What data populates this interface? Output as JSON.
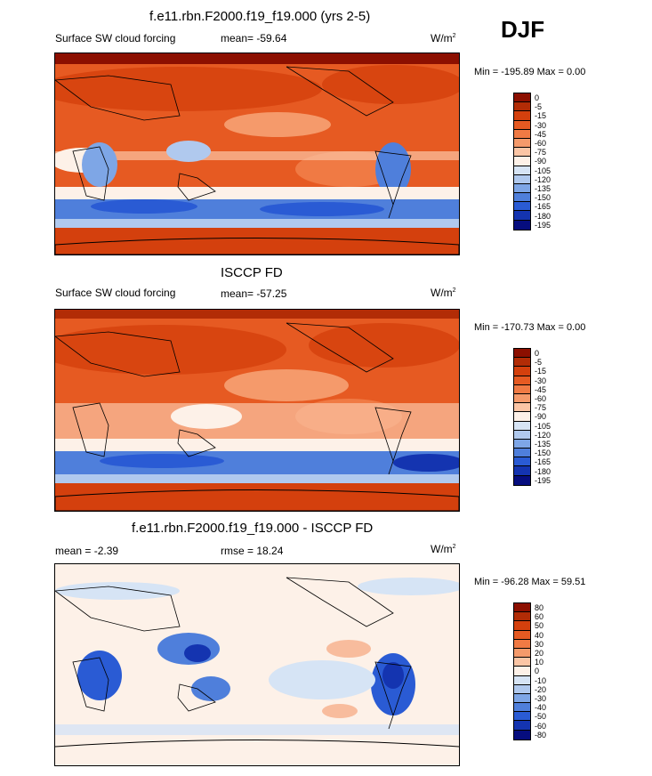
{
  "season": "DJF",
  "units_base": "W/m",
  "units_exp": "2",
  "panels": [
    {
      "title": "f.e11.rbn.F2000.f19_f19.000 (yrs 2-5)",
      "left_label": "Surface SW cloud forcing",
      "center_label": "mean= -59.64",
      "stats": "Min = -195.89 Max =   0.00"
    },
    {
      "title": "ISCCP FD",
      "left_label": "Surface SW cloud forcing",
      "center_label": "mean= -57.25",
      "stats": "Min = -170.73 Max =   0.00"
    },
    {
      "title": "f.e11.rbn.F2000.f19_f19.000 - ISCCP FD",
      "left_label": "mean =  -2.39",
      "center_label": "rmse =  18.24",
      "stats": "Min = -96.28 Max =  59.51"
    }
  ],
  "chart_data": [
    {
      "type": "heatmap",
      "title": "f.e11.rbn.F2000.f19_f19.000 (yrs 2-5)",
      "variable": "Surface SW cloud forcing",
      "mean": -59.64,
      "min": -195.89,
      "max": 0.0,
      "colorbar_labels": [
        "0",
        "-5",
        "-15",
        "-30",
        "-45",
        "-60",
        "-75",
        "-90",
        "-105",
        "-120",
        "-135",
        "-150",
        "-165",
        "-180",
        "-195"
      ]
    },
    {
      "type": "heatmap",
      "title": "ISCCP FD",
      "variable": "Surface SW cloud forcing",
      "mean": -57.25,
      "min": -170.73,
      "max": 0.0,
      "colorbar_labels": [
        "0",
        "-5",
        "-15",
        "-30",
        "-45",
        "-60",
        "-75",
        "-90",
        "-105",
        "-120",
        "-135",
        "-150",
        "-165",
        "-180",
        "-195"
      ]
    },
    {
      "type": "heatmap",
      "title": "f.e11.rbn.F2000.f19_f19.000 - ISCCP FD",
      "mean": -2.39,
      "rmse": 18.24,
      "min": -96.28,
      "max": 59.51,
      "colorbar_labels": [
        "80",
        "60",
        "50",
        "40",
        "30",
        "20",
        "10",
        "0",
        "-10",
        "-20",
        "-30",
        "-40",
        "-50",
        "-60",
        "-80"
      ]
    }
  ],
  "colors": {
    "abs_scale": [
      "#8c0f00",
      "#b22c06",
      "#d4400d",
      "#e65a22",
      "#f07a44",
      "#f59a6b",
      "#fbc5a5",
      "#fdf1e8",
      "#d6e4f5",
      "#b0c9ee",
      "#7ea6e6",
      "#4f7fdb",
      "#2a5bd4",
      "#1434b0",
      "#060d7e"
    ],
    "diff_scale": [
      "#8c0f00",
      "#b22c06",
      "#d4400d",
      "#e65a22",
      "#f07a44",
      "#f59a6b",
      "#fbc5a5",
      "#fdf1e8",
      "#d6e4f5",
      "#b0c9ee",
      "#7ea6e6",
      "#4f7fdb",
      "#2a5bd4",
      "#1434b0",
      "#060d7e"
    ]
  }
}
